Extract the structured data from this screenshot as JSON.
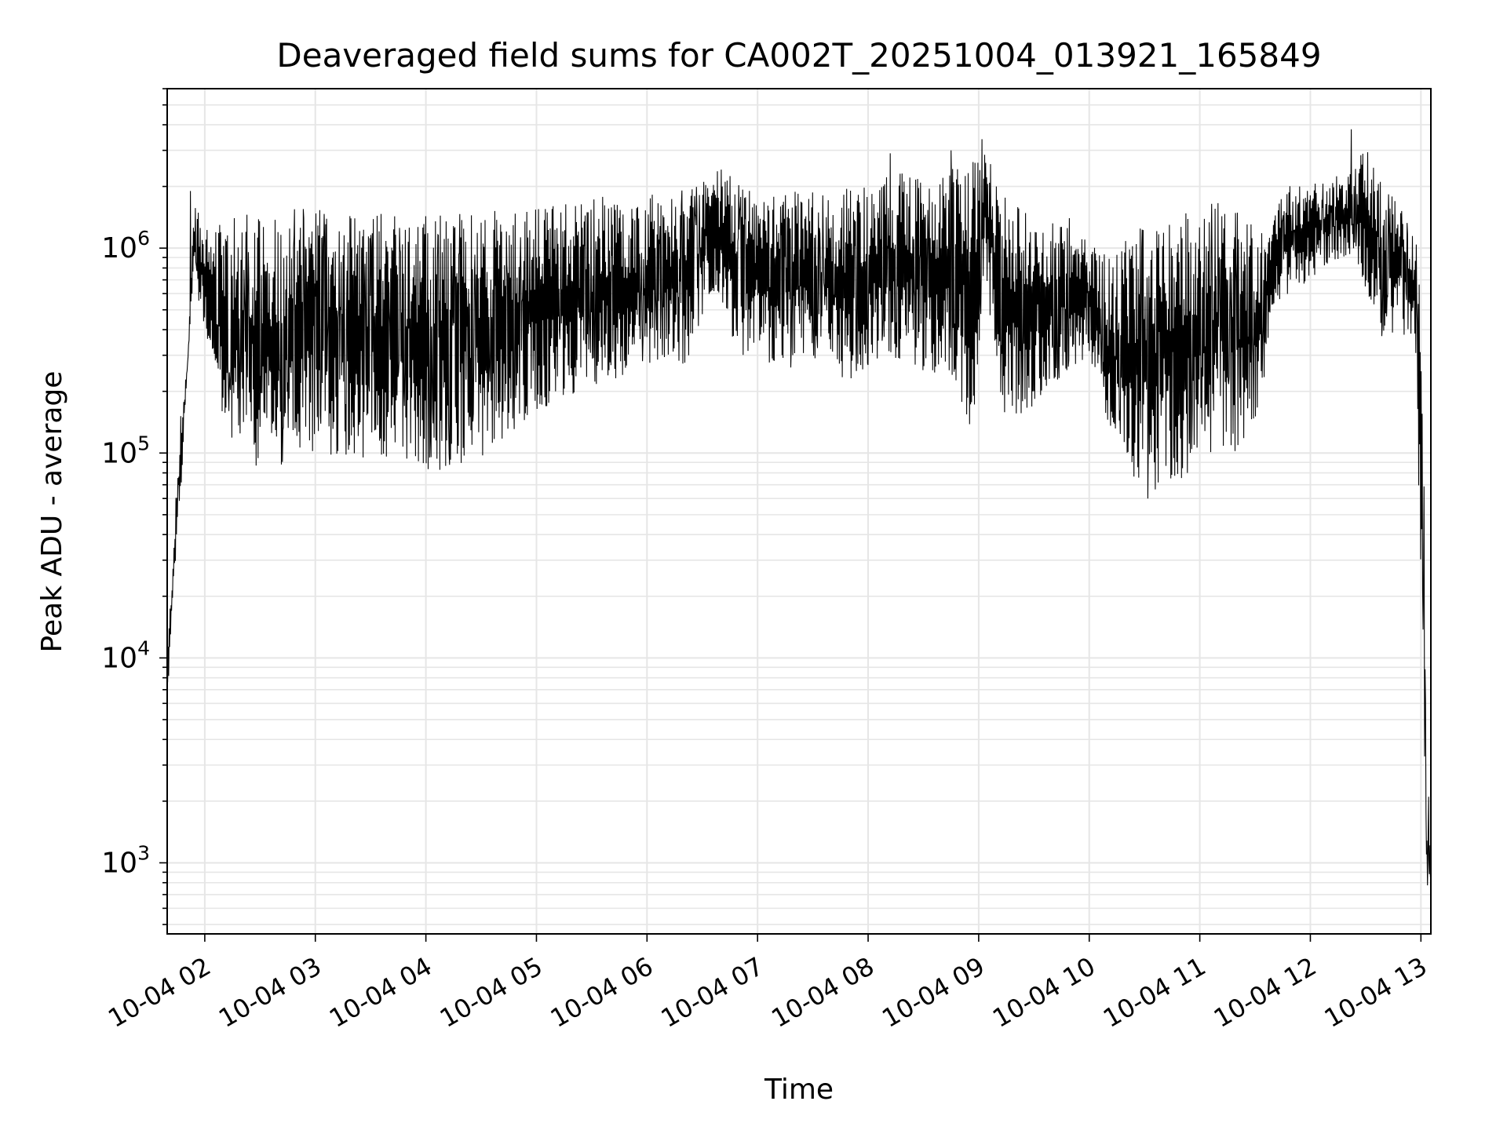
{
  "chart_data": {
    "type": "line",
    "title": "Deaveraged field sums for CA002T_20251004_013921_165849",
    "xlabel": "Time",
    "ylabel": "Peak ADU - average",
    "yscale": "log",
    "ylim": [
      450,
      6000000
    ],
    "xlim_hours": [
      1.66,
      13.09
    ],
    "grid": true,
    "legend": "none",
    "line_color": "#000000",
    "grid_color": "#e6e6e6",
    "x_ticks": [
      {
        "hour": 2,
        "label": "10-04 02"
      },
      {
        "hour": 3,
        "label": "10-04 03"
      },
      {
        "hour": 4,
        "label": "10-04 04"
      },
      {
        "hour": 5,
        "label": "10-04 05"
      },
      {
        "hour": 6,
        "label": "10-04 06"
      },
      {
        "hour": 7,
        "label": "10-04 07"
      },
      {
        "hour": 8,
        "label": "10-04 08"
      },
      {
        "hour": 9,
        "label": "10-04 09"
      },
      {
        "hour": 10,
        "label": "10-04 10"
      },
      {
        "hour": 11,
        "label": "10-04 11"
      },
      {
        "hour": 12,
        "label": "10-04 12"
      },
      {
        "hour": 13,
        "label": "10-04 13"
      }
    ],
    "y_ticks": [
      {
        "value": 1000,
        "base": "10",
        "exp": "3"
      },
      {
        "value": 10000,
        "base": "10",
        "exp": "4"
      },
      {
        "value": 100000,
        "base": "10",
        "exp": "5"
      },
      {
        "value": 1000000,
        "base": "10",
        "exp": "6"
      }
    ],
    "series": [
      {
        "name": "field sums",
        "envelope": {
          "time_hours": [
            1.66,
            1.72,
            1.78,
            1.85,
            1.9,
            1.95,
            2.05,
            2.2,
            2.4,
            2.6,
            2.8,
            3.0,
            3.3,
            3.6,
            4.0,
            4.3,
            4.6,
            4.8,
            5.0,
            5.3,
            5.6,
            5.9,
            6.2,
            6.4,
            6.6,
            6.8,
            7.0,
            7.3,
            7.6,
            7.8,
            8.0,
            8.3,
            8.6,
            8.8,
            8.95,
            9.05,
            9.2,
            9.4,
            9.6,
            9.8,
            10.0,
            10.2,
            10.4,
            10.6,
            10.8,
            11.0,
            11.2,
            11.4,
            11.55,
            11.65,
            11.8,
            12.0,
            12.2,
            12.4,
            12.5,
            12.6,
            12.8,
            12.95,
            13.02,
            13.05,
            13.09
          ],
          "low": [
            6000,
            20000,
            60000,
            300000,
            800000,
            500000,
            300000,
            110000,
            85000,
            85000,
            90000,
            95000,
            95000,
            90000,
            80000,
            85000,
            100000,
            130000,
            160000,
            190000,
            220000,
            250000,
            280000,
            260000,
            600000,
            300000,
            280000,
            260000,
            300000,
            220000,
            260000,
            280000,
            240000,
            220000,
            110000,
            800000,
            150000,
            150000,
            200000,
            250000,
            300000,
            120000,
            70000,
            65000,
            70000,
            85000,
            90000,
            110000,
            150000,
            500000,
            600000,
            700000,
            850000,
            950000,
            600000,
            350000,
            400000,
            300000,
            8000,
            800,
            700
          ],
          "high": [
            10000,
            40000,
            150000,
            300000,
            1800000,
            1500000,
            1200000,
            1400000,
            1500000,
            1500000,
            1550000,
            1600000,
            1600000,
            1550000,
            1500000,
            1500000,
            1550000,
            1500000,
            1600000,
            1700000,
            1800000,
            1800000,
            1900000,
            2000000,
            2600000,
            2200000,
            1800000,
            1900000,
            1900000,
            2000000,
            2200000,
            2400000,
            2200000,
            2500000,
            2800000,
            3300000,
            2000000,
            1600000,
            1500000,
            1300000,
            1100000,
            900000,
            1200000,
            1500000,
            1600000,
            1600000,
            1700000,
            1500000,
            1300000,
            1500000,
            2000000,
            2100000,
            2200000,
            2500000,
            3500000,
            2300000,
            1800000,
            1200000,
            400000,
            1500,
            1200
          ]
        },
        "spikes": [
          {
            "hour": 1.87,
            "value": 1900000
          },
          {
            "hour": 8.2,
            "value": 2900000
          },
          {
            "hour": 8.75,
            "value": 3000000
          },
          {
            "hour": 9.03,
            "value": 3400000
          },
          {
            "hour": 12.37,
            "value": 3800000
          },
          {
            "hour": 9.82,
            "value": 1400000
          },
          {
            "hour": 10.53,
            "value": 60000
          },
          {
            "hour": 13.07,
            "value": 2100
          }
        ]
      }
    ]
  }
}
